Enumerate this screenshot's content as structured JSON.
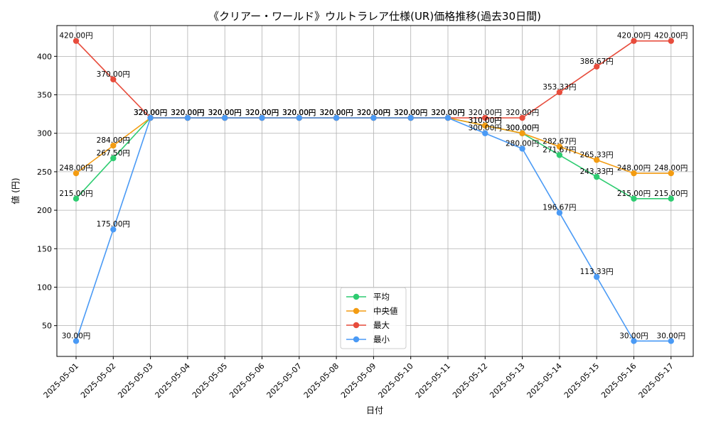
{
  "chart_data": {
    "type": "line",
    "title": "《クリアー・ワールド》ウルトラレア仕様(UR)価格推移(過去30日間)",
    "xlabel": "日付",
    "ylabel": "値 (円)",
    "ylim": [
      10,
      440
    ],
    "yticks": [
      50,
      100,
      150,
      200,
      250,
      300,
      350,
      400
    ],
    "grid": true,
    "legend_position": "bottom-center",
    "label_suffix": "円",
    "x": [
      "2025-05-01",
      "2025-05-02",
      "2025-05-03",
      "2025-05-04",
      "2025-05-05",
      "2025-05-06",
      "2025-05-07",
      "2025-05-08",
      "2025-05-09",
      "2025-05-10",
      "2025-05-11",
      "2025-05-12",
      "2025-05-13",
      "2025-05-14",
      "2025-05-15",
      "2025-05-16",
      "2025-05-17"
    ],
    "series": [
      {
        "name": "平均",
        "color": "#2ecc71",
        "values": [
          215,
          267.5,
          320,
          320,
          320,
          320,
          320,
          320,
          320,
          320,
          320,
          310,
          300,
          271.67,
          243.33,
          215,
          215
        ]
      },
      {
        "name": "中央値",
        "color": "#f39c12",
        "values": [
          248,
          284,
          320,
          320,
          320,
          320,
          320,
          320,
          320,
          320,
          320,
          310,
          300,
          282.67,
          265.33,
          248,
          248
        ]
      },
      {
        "name": "最大",
        "color": "#e74c3c",
        "values": [
          420,
          370,
          320,
          320,
          320,
          320,
          320,
          320,
          320,
          320,
          320,
          320,
          320,
          353.33,
          386.67,
          420,
          420
        ]
      },
      {
        "name": "最小",
        "color": "#4a9af5",
        "values": [
          30,
          175,
          320,
          320,
          320,
          320,
          320,
          320,
          320,
          320,
          320,
          300,
          280,
          196.67,
          113.33,
          30,
          30
        ]
      }
    ]
  }
}
